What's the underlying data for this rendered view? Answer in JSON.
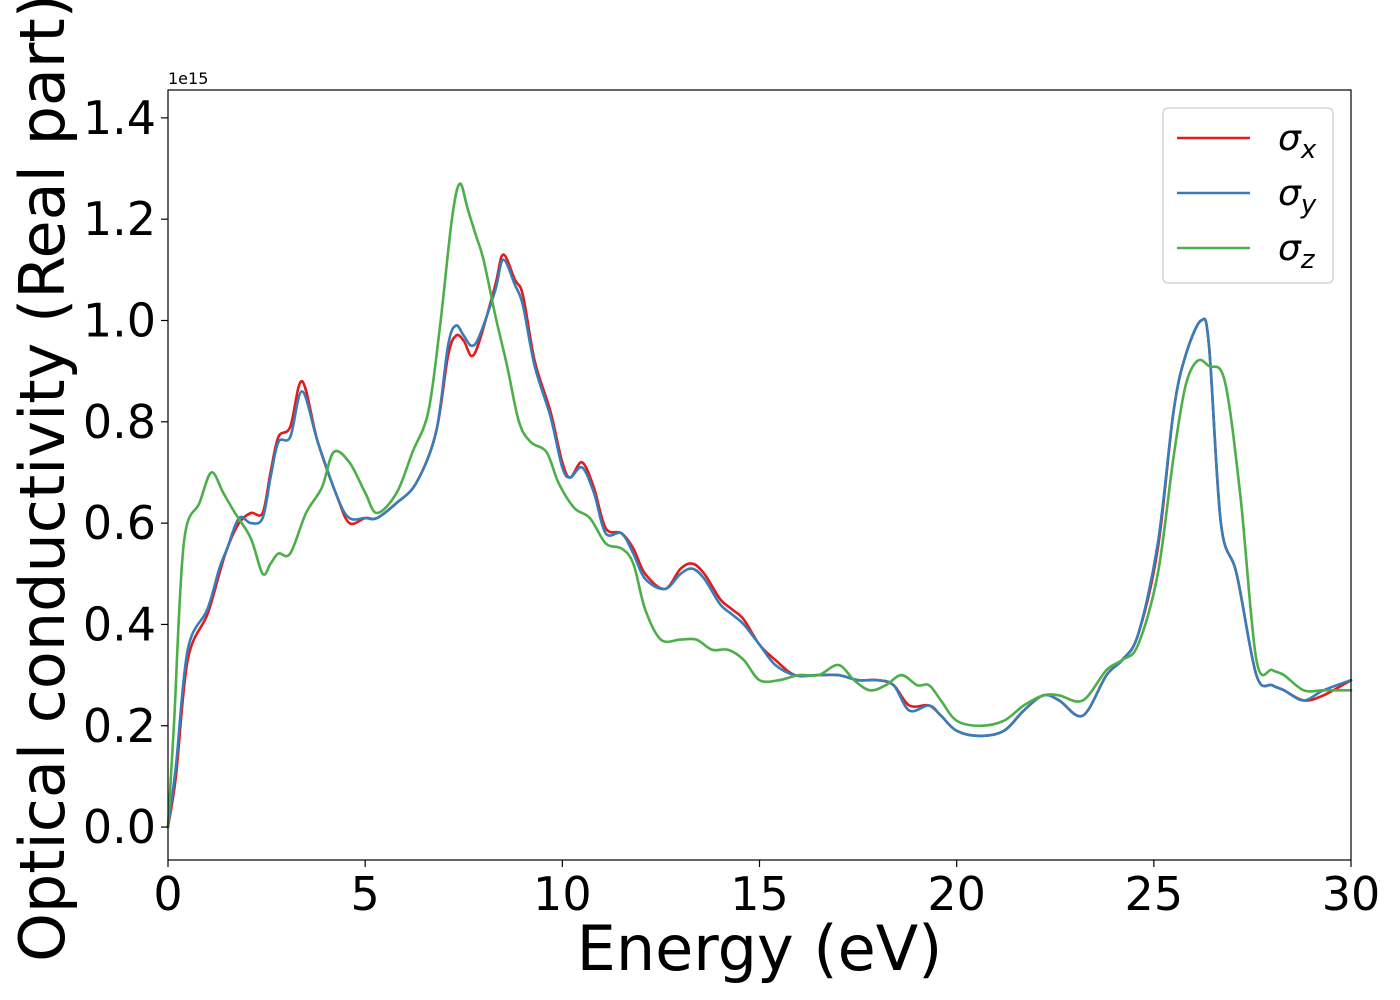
{
  "chart_data": {
    "type": "line",
    "title": "",
    "xlabel": "Energy (eV)",
    "ylabel": "Optical conductivity (Real part)",
    "offset_text": "1e15",
    "xlim": [
      0,
      30
    ],
    "ylim": [
      -0.065,
      1.455
    ],
    "y_scale_factor": "1e15",
    "x_ticks": [
      0,
      5,
      10,
      15,
      20,
      25,
      30
    ],
    "x_tick_labels": [
      "0",
      "5",
      "10",
      "15",
      "20",
      "25",
      "30"
    ],
    "y_ticks": [
      0.0,
      0.2,
      0.4,
      0.6,
      0.8,
      1.0,
      1.2,
      1.4
    ],
    "y_tick_labels": [
      "0.0",
      "0.2",
      "0.4",
      "0.6",
      "0.8",
      "1.0",
      "1.2",
      "1.4"
    ],
    "grid": false,
    "legend_position": "top-right",
    "legend": [
      {
        "symbol": "σ",
        "sub": "x",
        "color": "#e41a1c"
      },
      {
        "symbol": "σ",
        "sub": "y",
        "color": "#377eb8"
      },
      {
        "symbol": "σ",
        "sub": "z",
        "color": "#4daf4a"
      }
    ],
    "series": [
      {
        "color": "#e41a1c",
        "points": [
          [
            0,
            0
          ],
          [
            0.2,
            0.1
          ],
          [
            0.5,
            0.33
          ],
          [
            1.0,
            0.42
          ],
          [
            1.3,
            0.5
          ],
          [
            1.5,
            0.55
          ],
          [
            1.8,
            0.6
          ],
          [
            2.1,
            0.62
          ],
          [
            2.4,
            0.62
          ],
          [
            2.6,
            0.7
          ],
          [
            2.8,
            0.77
          ],
          [
            3.1,
            0.79
          ],
          [
            3.4,
            0.88
          ],
          [
            3.8,
            0.76
          ],
          [
            4.3,
            0.65
          ],
          [
            4.6,
            0.6
          ],
          [
            5.0,
            0.61
          ],
          [
            5.3,
            0.61
          ],
          [
            5.8,
            0.64
          ],
          [
            6.3,
            0.68
          ],
          [
            6.8,
            0.78
          ],
          [
            7.1,
            0.93
          ],
          [
            7.3,
            0.97
          ],
          [
            7.5,
            0.96
          ],
          [
            7.7,
            0.93
          ],
          [
            7.9,
            0.96
          ],
          [
            8.3,
            1.07
          ],
          [
            8.5,
            1.13
          ],
          [
            8.8,
            1.08
          ],
          [
            9.0,
            1.05
          ],
          [
            9.3,
            0.92
          ],
          [
            9.7,
            0.82
          ],
          [
            10.0,
            0.72
          ],
          [
            10.2,
            0.69
          ],
          [
            10.5,
            0.72
          ],
          [
            10.8,
            0.67
          ],
          [
            11.1,
            0.59
          ],
          [
            11.5,
            0.58
          ],
          [
            11.8,
            0.55
          ],
          [
            12.1,
            0.5
          ],
          [
            12.6,
            0.47
          ],
          [
            13.0,
            0.51
          ],
          [
            13.3,
            0.52
          ],
          [
            13.6,
            0.5
          ],
          [
            14.0,
            0.45
          ],
          [
            14.3,
            0.43
          ],
          [
            14.6,
            0.41
          ],
          [
            15.0,
            0.36
          ],
          [
            15.4,
            0.33
          ],
          [
            15.9,
            0.3
          ],
          [
            16.5,
            0.3
          ],
          [
            17.0,
            0.3
          ],
          [
            17.5,
            0.29
          ],
          [
            18.0,
            0.29
          ],
          [
            18.4,
            0.28
          ],
          [
            18.8,
            0.24
          ],
          [
            19.3,
            0.24
          ],
          [
            19.6,
            0.22
          ],
          [
            20.0,
            0.19
          ],
          [
            20.6,
            0.18
          ],
          [
            21.2,
            0.19
          ],
          [
            21.7,
            0.23
          ],
          [
            22.2,
            0.26
          ],
          [
            22.6,
            0.25
          ],
          [
            23.2,
            0.22
          ],
          [
            23.8,
            0.3
          ],
          [
            24.2,
            0.33
          ],
          [
            24.6,
            0.38
          ],
          [
            25.1,
            0.55
          ],
          [
            25.5,
            0.82
          ],
          [
            25.8,
            0.93
          ],
          [
            26.2,
            1.0
          ],
          [
            26.4,
            0.95
          ],
          [
            26.7,
            0.6
          ],
          [
            27.1,
            0.5
          ],
          [
            27.6,
            0.3
          ],
          [
            28.0,
            0.28
          ],
          [
            28.3,
            0.27
          ],
          [
            28.8,
            0.25
          ],
          [
            29.3,
            0.26
          ],
          [
            30,
            0.29
          ]
        ]
      },
      {
        "color": "#377eb8",
        "points": [
          [
            0,
            0
          ],
          [
            0.2,
            0.12
          ],
          [
            0.5,
            0.35
          ],
          [
            1.0,
            0.43
          ],
          [
            1.3,
            0.51
          ],
          [
            1.5,
            0.55
          ],
          [
            1.8,
            0.61
          ],
          [
            2.1,
            0.6
          ],
          [
            2.4,
            0.61
          ],
          [
            2.6,
            0.69
          ],
          [
            2.8,
            0.76
          ],
          [
            3.1,
            0.77
          ],
          [
            3.4,
            0.86
          ],
          [
            3.8,
            0.76
          ],
          [
            4.3,
            0.65
          ],
          [
            4.6,
            0.61
          ],
          [
            5.0,
            0.61
          ],
          [
            5.3,
            0.61
          ],
          [
            5.8,
            0.64
          ],
          [
            6.3,
            0.68
          ],
          [
            6.8,
            0.78
          ],
          [
            7.1,
            0.95
          ],
          [
            7.3,
            0.99
          ],
          [
            7.5,
            0.97
          ],
          [
            7.7,
            0.95
          ],
          [
            7.9,
            0.97
          ],
          [
            8.3,
            1.06
          ],
          [
            8.5,
            1.12
          ],
          [
            8.8,
            1.07
          ],
          [
            9.0,
            1.03
          ],
          [
            9.3,
            0.91
          ],
          [
            9.7,
            0.81
          ],
          [
            10.0,
            0.71
          ],
          [
            10.2,
            0.69
          ],
          [
            10.5,
            0.71
          ],
          [
            10.8,
            0.66
          ],
          [
            11.1,
            0.58
          ],
          [
            11.5,
            0.58
          ],
          [
            11.8,
            0.54
          ],
          [
            12.1,
            0.49
          ],
          [
            12.6,
            0.47
          ],
          [
            13.0,
            0.5
          ],
          [
            13.3,
            0.51
          ],
          [
            13.6,
            0.49
          ],
          [
            14.0,
            0.44
          ],
          [
            14.3,
            0.42
          ],
          [
            14.6,
            0.4
          ],
          [
            15.0,
            0.36
          ],
          [
            15.4,
            0.32
          ],
          [
            15.9,
            0.3
          ],
          [
            16.5,
            0.3
          ],
          [
            17.0,
            0.3
          ],
          [
            17.5,
            0.29
          ],
          [
            18.0,
            0.29
          ],
          [
            18.4,
            0.28
          ],
          [
            18.8,
            0.23
          ],
          [
            19.3,
            0.24
          ],
          [
            19.6,
            0.22
          ],
          [
            20.0,
            0.19
          ],
          [
            20.6,
            0.18
          ],
          [
            21.2,
            0.19
          ],
          [
            21.7,
            0.23
          ],
          [
            22.2,
            0.26
          ],
          [
            22.6,
            0.25
          ],
          [
            23.2,
            0.22
          ],
          [
            23.8,
            0.3
          ],
          [
            24.2,
            0.33
          ],
          [
            24.6,
            0.38
          ],
          [
            25.1,
            0.56
          ],
          [
            25.5,
            0.82
          ],
          [
            25.8,
            0.93
          ],
          [
            26.2,
            1.0
          ],
          [
            26.4,
            0.95
          ],
          [
            26.7,
            0.6
          ],
          [
            27.1,
            0.5
          ],
          [
            27.6,
            0.3
          ],
          [
            28.0,
            0.28
          ],
          [
            28.3,
            0.27
          ],
          [
            28.8,
            0.25
          ],
          [
            29.3,
            0.27
          ],
          [
            30,
            0.29
          ]
        ]
      },
      {
        "color": "#4daf4a",
        "points": [
          [
            0,
            0
          ],
          [
            0.15,
            0.2
          ],
          [
            0.4,
            0.56
          ],
          [
            0.8,
            0.64
          ],
          [
            1.1,
            0.7
          ],
          [
            1.4,
            0.66
          ],
          [
            1.7,
            0.62
          ],
          [
            2.1,
            0.57
          ],
          [
            2.4,
            0.5
          ],
          [
            2.6,
            0.52
          ],
          [
            2.8,
            0.54
          ],
          [
            3.1,
            0.54
          ],
          [
            3.5,
            0.62
          ],
          [
            3.9,
            0.67
          ],
          [
            4.2,
            0.74
          ],
          [
            4.6,
            0.72
          ],
          [
            5.0,
            0.66
          ],
          [
            5.3,
            0.62
          ],
          [
            5.8,
            0.66
          ],
          [
            6.2,
            0.74
          ],
          [
            6.6,
            0.82
          ],
          [
            6.9,
            0.99
          ],
          [
            7.2,
            1.2
          ],
          [
            7.4,
            1.27
          ],
          [
            7.6,
            1.22
          ],
          [
            7.8,
            1.17
          ],
          [
            8.0,
            1.12
          ],
          [
            8.3,
            1.01
          ],
          [
            8.6,
            0.91
          ],
          [
            8.9,
            0.8
          ],
          [
            9.2,
            0.76
          ],
          [
            9.6,
            0.74
          ],
          [
            9.9,
            0.68
          ],
          [
            10.3,
            0.63
          ],
          [
            10.7,
            0.61
          ],
          [
            11.1,
            0.56
          ],
          [
            11.5,
            0.55
          ],
          [
            11.8,
            0.52
          ],
          [
            12.1,
            0.43
          ],
          [
            12.5,
            0.37
          ],
          [
            13.0,
            0.37
          ],
          [
            13.4,
            0.37
          ],
          [
            13.8,
            0.35
          ],
          [
            14.2,
            0.35
          ],
          [
            14.6,
            0.33
          ],
          [
            15.0,
            0.29
          ],
          [
            15.5,
            0.29
          ],
          [
            16.0,
            0.3
          ],
          [
            16.5,
            0.3
          ],
          [
            17.0,
            0.32
          ],
          [
            17.4,
            0.29
          ],
          [
            17.8,
            0.27
          ],
          [
            18.2,
            0.28
          ],
          [
            18.6,
            0.3
          ],
          [
            19.0,
            0.28
          ],
          [
            19.3,
            0.28
          ],
          [
            19.6,
            0.25
          ],
          [
            20.0,
            0.21
          ],
          [
            20.6,
            0.2
          ],
          [
            21.2,
            0.21
          ],
          [
            21.7,
            0.24
          ],
          [
            22.2,
            0.26
          ],
          [
            22.6,
            0.26
          ],
          [
            23.2,
            0.25
          ],
          [
            23.8,
            0.31
          ],
          [
            24.2,
            0.33
          ],
          [
            24.6,
            0.36
          ],
          [
            25.1,
            0.5
          ],
          [
            25.5,
            0.73
          ],
          [
            25.8,
            0.87
          ],
          [
            26.1,
            0.92
          ],
          [
            26.4,
            0.91
          ],
          [
            26.8,
            0.88
          ],
          [
            27.2,
            0.65
          ],
          [
            27.6,
            0.33
          ],
          [
            28.0,
            0.31
          ],
          [
            28.3,
            0.3
          ],
          [
            28.8,
            0.27
          ],
          [
            29.3,
            0.27
          ],
          [
            30,
            0.27
          ]
        ]
      }
    ]
  }
}
